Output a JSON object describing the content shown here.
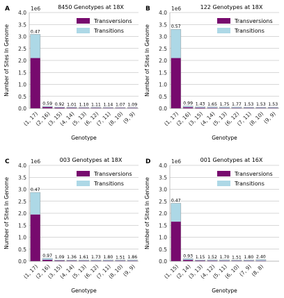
{
  "colors": {
    "transversions": "#770a6e",
    "transitions": "#add8e6",
    "grid": "#b0b0b0",
    "axis": "#262626"
  },
  "shared": {
    "multiplier": "1e6",
    "ylabel": "Number of Sites In Genome",
    "xlabel": "Genotype",
    "yticks": [
      "0.0",
      "0.5",
      "1.0",
      "1.5",
      "2.0",
      "2.5",
      "3.0",
      "3.5",
      "4.0"
    ]
  },
  "chart_data": [
    {
      "panel": "A",
      "type": "bar",
      "stacked": true,
      "title": "8450 Genotypes at 18X",
      "xlabel": "Genotype",
      "ylabel": "Number of Sites In Genome",
      "y_multiplier": "1e6",
      "ylim": [
        0,
        4.0
      ],
      "legend": "top-right",
      "categories": [
        "(1, 17)",
        "(2, 16)",
        "(3, 15)",
        "(4, 14)",
        "(5, 13)",
        "(6, 12)",
        "(7, 11)",
        "(8, 10)",
        "(9, 9)"
      ],
      "series": [
        {
          "name": "Transversions",
          "values": [
            2.1,
            0.056,
            0.03,
            0.025,
            0.022,
            0.022,
            0.02,
            0.02,
            0.02
          ]
        },
        {
          "name": "Transitions",
          "values": [
            0.99,
            0.034,
            0.028,
            0.025,
            0.022,
            0.024,
            0.023,
            0.021,
            0.022
          ]
        }
      ],
      "bar_labels": [
        "0.47",
        "0.59",
        "0.92",
        "1.01",
        "1.10",
        "1.11",
        "1.14",
        "1.07",
        "1.09"
      ]
    },
    {
      "panel": "B",
      "type": "bar",
      "stacked": true,
      "title": "122 Genotypes at 18X",
      "xlabel": "Genotype",
      "ylabel": "Number of Sites In Genome",
      "y_multiplier": "1e6",
      "ylim": [
        0,
        4.0
      ],
      "legend": "top-right",
      "categories": [
        "(1, 17)",
        "(2, 16)",
        "(3, 15)",
        "(4, 14)",
        "(5, 13)",
        "(6, 12)",
        "(7, 11)",
        "(8, 10)",
        "(9, 9)"
      ],
      "series": [
        {
          "name": "Transversions",
          "values": [
            2.1,
            0.05,
            0.028,
            0.024,
            0.022,
            0.021,
            0.02,
            0.02,
            0.02
          ]
        },
        {
          "name": "Transitions",
          "values": [
            1.2,
            0.05,
            0.04,
            0.039,
            0.038,
            0.037,
            0.032,
            0.032,
            0.031
          ]
        }
      ],
      "bar_labels": [
        "0.57",
        "0.99",
        "1.43",
        "1.65",
        "1.75",
        "1.77",
        "1.53",
        "1.53",
        "1.53"
      ]
    },
    {
      "panel": "C",
      "type": "bar",
      "stacked": true,
      "title": "003 Genotypes at 18X",
      "xlabel": "Genotype",
      "ylabel": "Number of Sites In Genome",
      "y_multiplier": "1e6",
      "ylim": [
        0,
        4.0
      ],
      "legend": "top-right",
      "categories": [
        "(1, 17)",
        "(2, 16)",
        "(3, 15)",
        "(4, 14)",
        "(5, 13)",
        "(6, 12)",
        "(7, 11)",
        "(8, 10)",
        "(9, 9)"
      ],
      "series": [
        {
          "name": "Transversions",
          "values": [
            1.95,
            0.06,
            0.026,
            0.023,
            0.021,
            0.02,
            0.02,
            0.02,
            0.02
          ]
        },
        {
          "name": "Transitions",
          "values": [
            0.92,
            0.06,
            0.028,
            0.031,
            0.034,
            0.035,
            0.036,
            0.03,
            0.037
          ]
        }
      ],
      "bar_labels": [
        "0.47",
        "0.97",
        "1.09",
        "1.36",
        "1.61",
        "1.73",
        "1.80",
        "1.51",
        "1.86"
      ]
    },
    {
      "panel": "D",
      "type": "bar",
      "stacked": true,
      "title": "001 Genotypes at 16X",
      "xlabel": "Genotype",
      "ylabel": "Number of Sites In Genome",
      "y_multiplier": "1e6",
      "ylim": [
        0,
        4.0
      ],
      "legend": "top-right",
      "categories": [
        "(1, 15)",
        "(2, 14)",
        "(3, 13)",
        "(4, 12)",
        "(5, 11)",
        "(6, 10)",
        "(7, 9)",
        "(8, 8)"
      ],
      "series": [
        {
          "name": "Transversions",
          "values": [
            1.65,
            0.055,
            0.026,
            0.024,
            0.022,
            0.02,
            0.02,
            0.02
          ]
        },
        {
          "name": "Transitions",
          "values": [
            0.77,
            0.05,
            0.03,
            0.036,
            0.037,
            0.03,
            0.036,
            0.05
          ]
        }
      ],
      "bar_labels": [
        "0.47",
        "0.93",
        "1.15",
        "1.52",
        "1.70",
        "1.51",
        "1.80",
        "2.40"
      ]
    }
  ]
}
